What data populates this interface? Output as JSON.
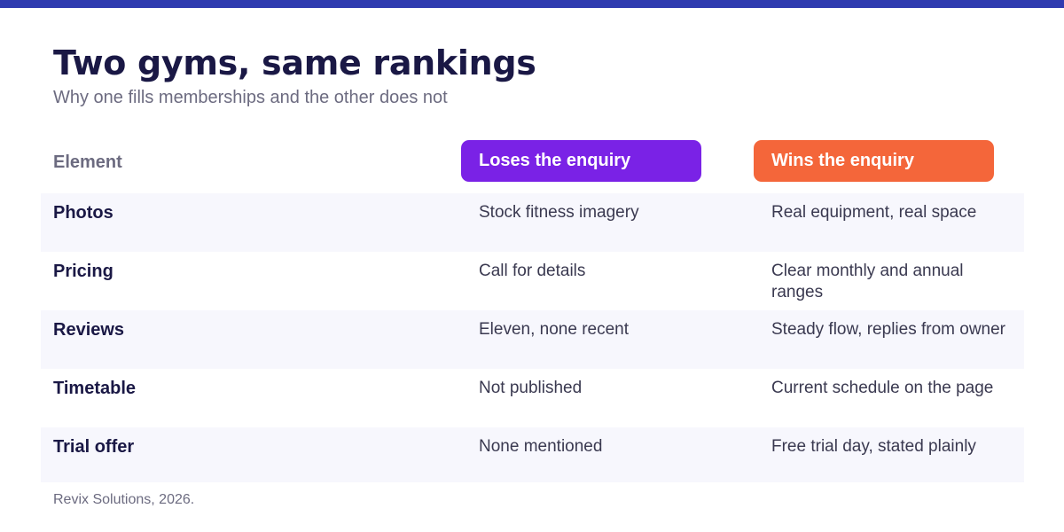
{
  "colors": {
    "top_bar": "#2f3bb0",
    "title": "#1a1845",
    "loses_pill": "#7a22e6",
    "wins_pill": "#f4663a",
    "row_shade": "#f7f7fd"
  },
  "header": {
    "title": "Two gyms, same rankings",
    "subtitle": "Why one fills memberships and the other does not"
  },
  "table": {
    "columns": {
      "element": "Element",
      "loses": "Loses the enquiry",
      "wins": "Wins the enquiry"
    },
    "rows": [
      {
        "element": "Photos",
        "loses": "Stock fitness imagery",
        "wins": "Real equipment, real space"
      },
      {
        "element": "Pricing",
        "loses": "Call for details",
        "wins": "Clear monthly and annual ranges"
      },
      {
        "element": "Reviews",
        "loses": "Eleven, none recent",
        "wins": "Steady flow, replies from owner"
      },
      {
        "element": "Timetable",
        "loses": "Not published",
        "wins": "Current schedule on the page"
      },
      {
        "element": "Trial offer",
        "loses": "None mentioned",
        "wins": "Free trial day, stated plainly"
      }
    ]
  },
  "footer": {
    "source": "Revix Solutions, 2026."
  }
}
